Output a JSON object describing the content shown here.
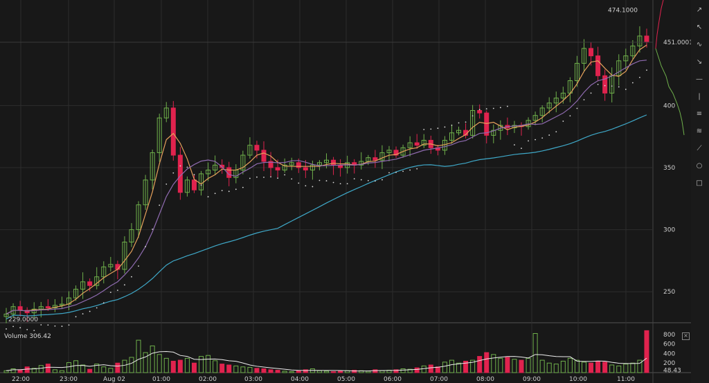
{
  "chart_data": [
    {
      "type": "candlestick",
      "title": "",
      "x_ticks": [
        "22:00",
        "23:00",
        "Aug 02",
        "01:00",
        "02:00",
        "03:00",
        "04:00",
        "05:00",
        "06:00",
        "07:00",
        "08:00",
        "09:00",
        "10:00",
        "11:00"
      ],
      "y_ticks": [
        "250",
        "300",
        "350",
        "400"
      ],
      "ylim": [
        225,
        485
      ],
      "grid": true,
      "price_labels": {
        "last": "451.0001",
        "high": "474.1000",
        "low": "229.0000"
      },
      "close_series": [
        232,
        238,
        235,
        233,
        236,
        238,
        237,
        239,
        240,
        245,
        252,
        258,
        255,
        262,
        270,
        272,
        268,
        290,
        300,
        320,
        340,
        362,
        390,
        398,
        360,
        330,
        340,
        332,
        345,
        348,
        352,
        350,
        342,
        348,
        360,
        368,
        364,
        355,
        350,
        348,
        352,
        354,
        350,
        348,
        352,
        354,
        356,
        352,
        350,
        354,
        352,
        355,
        358,
        356,
        362,
        364,
        360,
        366,
        370,
        368,
        372,
        366,
        364,
        372,
        378,
        380,
        376,
        396,
        394,
        376,
        380,
        384,
        382,
        384,
        383,
        388,
        392,
        398,
        402,
        406,
        410,
        420,
        434,
        446,
        440,
        424,
        410,
        424,
        436,
        440,
        448,
        456,
        451
      ]
    },
    {
      "type": "bar",
      "title": "Volume",
      "label": "Volume 306.42",
      "y_ticks": [
        "800",
        "600",
        "400",
        "200",
        "48.43"
      ],
      "ylim": [
        0,
        900
      ],
      "values": [
        40,
        80,
        60,
        120,
        90,
        150,
        180,
        60,
        40,
        210,
        250,
        160,
        70,
        180,
        120,
        90,
        200,
        260,
        320,
        680,
        420,
        560,
        380,
        300,
        240,
        260,
        300,
        200,
        340,
        360,
        250,
        180,
        160,
        140,
        120,
        110,
        90,
        80,
        60,
        50,
        30,
        20,
        40,
        60,
        80,
        40,
        30,
        20,
        30,
        40,
        50,
        40,
        30,
        60,
        40,
        50,
        60,
        80,
        70,
        100,
        140,
        160,
        120,
        220,
        260,
        200,
        240,
        260,
        340,
        420,
        380,
        300,
        320,
        280,
        260,
        300,
        820,
        260,
        200,
        180,
        240,
        300,
        260,
        220,
        200,
        240,
        220,
        160,
        140,
        180,
        200,
        260,
        880
      ]
    }
  ],
  "toolbar": {
    "tools": [
      "cursor-icon",
      "trend-line-icon",
      "pencil-icon",
      "arrow-icon",
      "horizontal-line-icon",
      "vertical-line-icon",
      "channel-icon",
      "fib-icon",
      "gann-icon",
      "circle-icon",
      "rectangle-icon"
    ],
    "glyphs": [
      "↗",
      "↖",
      "∿",
      "↘",
      "—",
      "|",
      "≡",
      "≋",
      "⟋",
      "○",
      "□"
    ]
  },
  "colors": {
    "background": "#181818",
    "grid": "#2d2d2d",
    "up_candle": "#6fb04b",
    "down_candle": "#e0234e",
    "ma_fast": "#e6a15c",
    "ma_mid": "#8f6bb0",
    "ma_slow": "#3fa9c9",
    "sar": "#dddddd",
    "volume_line": "#eeeeee"
  }
}
